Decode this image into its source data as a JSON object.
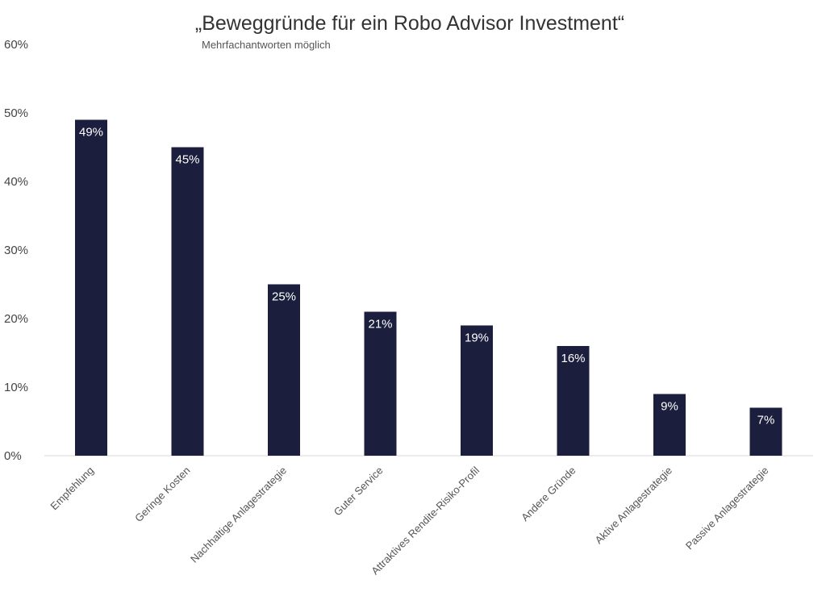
{
  "chart_data": {
    "type": "bar",
    "title": "„Beweggründe für ein Robo Advisor Investment“",
    "subtitle": "Mehrfachantworten möglich",
    "xlabel": "",
    "ylabel": "",
    "categories": [
      "Empfehlung",
      "Geringe Kosten",
      "Nachhaltige Anlagestrategie",
      "Guter Service",
      "Attraktives Rendite-Risiko-Profil",
      "Andere Gründe",
      "Aktive Anlagestrategie",
      "Passive Anlagestrategie"
    ],
    "values": [
      49,
      45,
      25,
      21,
      19,
      16,
      9,
      7
    ],
    "data_labels": [
      "49%",
      "45%",
      "25%",
      "21%",
      "19%",
      "16%",
      "9%",
      "7%"
    ],
    "ylim": [
      0,
      60
    ],
    "yticks": [
      0,
      10,
      20,
      30,
      40,
      50,
      60
    ],
    "ytick_labels": [
      "0%",
      "10%",
      "20%",
      "30%",
      "40%",
      "50%",
      "60%"
    ],
    "grid": false,
    "legend": "none",
    "bar_color": "#1b1e3c",
    "label_color": "#ffffff",
    "axis_color": "#d9d9d9"
  }
}
